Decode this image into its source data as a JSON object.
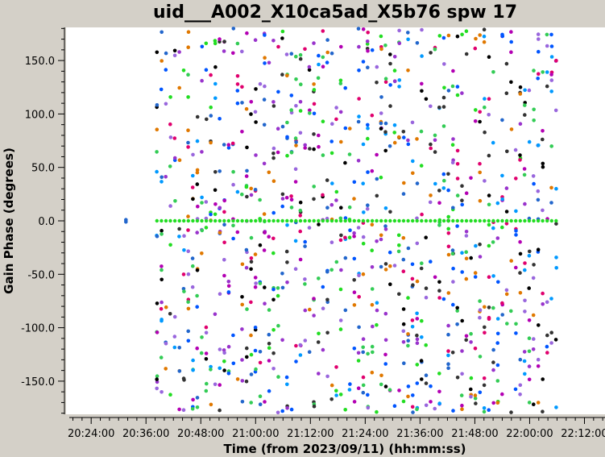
{
  "chart_data": {
    "type": "scatter",
    "title": "uid___A002_X10ca5ad_X5b76 spw 17",
    "xlabel": "Time (from 2023/09/11) (hh:mm:ss)",
    "ylabel": "Gain Phase (degrees)",
    "x_tick_labels": [
      "20:24:00",
      "20:36:00",
      "20:48:00",
      "21:00:00",
      "21:12:00",
      "21:24:00",
      "21:36:00",
      "21:48:00",
      "22:00:00",
      "22:12:00"
    ],
    "x_ticks_min": [
      1224,
      1236,
      1248,
      1260,
      1272,
      1284,
      1296,
      1308,
      1320,
      1332
    ],
    "xlim_min": [
      1218.5,
      1336.5
    ],
    "y_ticks": [
      -150,
      -100,
      -50,
      0,
      50,
      100,
      150
    ],
    "y_tick_labels": [
      "-150.0",
      "-100.0",
      "-50.0",
      "0.0",
      "50.0",
      "100.0",
      "150.0"
    ],
    "ylim": [
      -181,
      181
    ],
    "grid": false,
    "legend": "none",
    "scan_start_min": 1238.4,
    "scan_end_min": 1325.8,
    "n_scans": 90,
    "reference_phase": 0.0,
    "reference_color": "#22dd22",
    "series_colors": [
      "#000000",
      "#0055ff",
      "#22dd22",
      "#e0006e",
      "#9933cc",
      "#e07800",
      "#9966dd",
      "#2266cc",
      "#33cc55",
      "#b300b3",
      "#333333",
      "#0099ff"
    ],
    "outlier_points": [
      {
        "x": 1231.6,
        "y": 1.0
      },
      {
        "x": 1231.6,
        "y": -1.0
      }
    ]
  }
}
